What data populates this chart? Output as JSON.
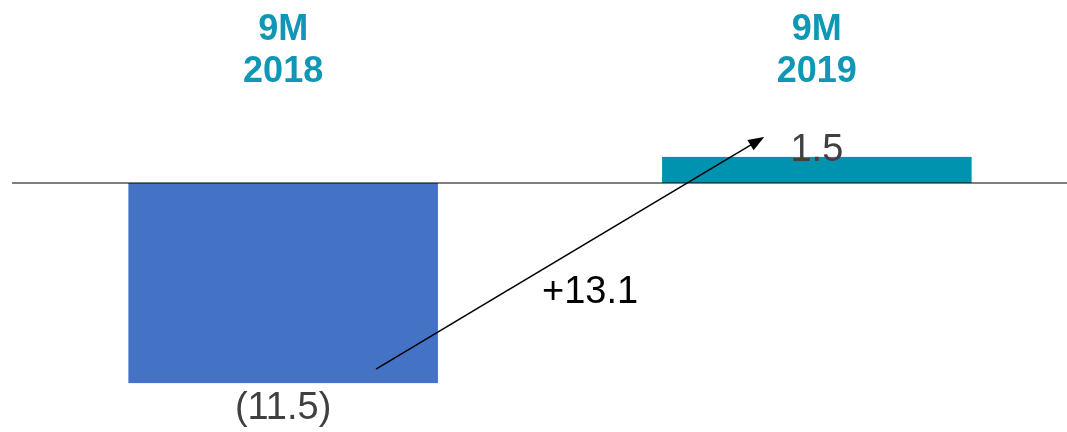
{
  "chart_data": {
    "type": "bar",
    "categories": [
      "9M\n2018",
      "9M\n2019"
    ],
    "values": [
      -11.5,
      1.5
    ],
    "colors": [
      "#4472c4",
      "#0093b0"
    ],
    "value_labels": [
      "(11.5)",
      "1.5"
    ],
    "annotations": [
      "+13.1"
    ]
  }
}
